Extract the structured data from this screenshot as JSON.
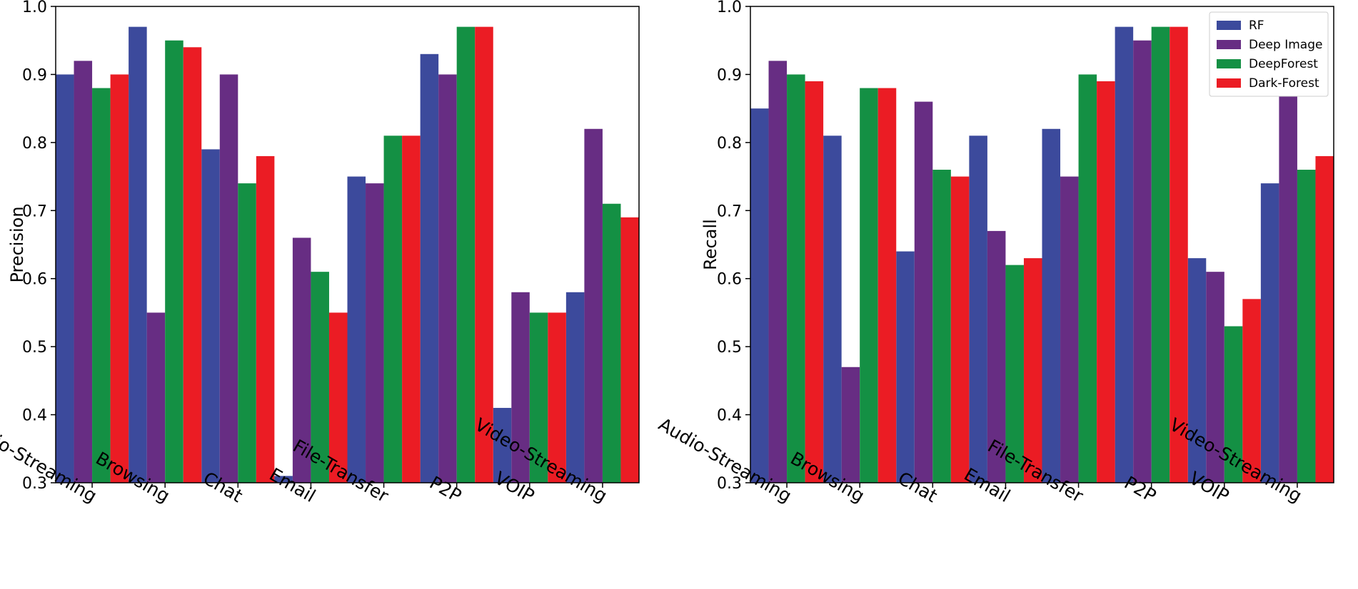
{
  "colors": {
    "RF": "#3c4a9c",
    "Deep Image": "#672d83",
    "DeepForest": "#149044",
    "Dark-Forest": "#eb1c24"
  },
  "chart_data": [
    {
      "type": "bar",
      "ylabel": "Precision",
      "ylim": [
        0.3,
        1.0
      ],
      "yticks": [
        "0.3",
        "0.4",
        "0.5",
        "0.6",
        "0.7",
        "0.8",
        "0.9",
        "1.0"
      ],
      "categories": [
        "Audio-Streaming",
        "Browsing",
        "Chat",
        "Email",
        "File-Transfer",
        "P2P",
        "VOIP",
        "Video-Streaming"
      ],
      "series": [
        {
          "name": "RF",
          "values": [
            0.9,
            0.97,
            0.79,
            0.31,
            0.75,
            0.93,
            0.41,
            0.58
          ]
        },
        {
          "name": "Deep Image",
          "values": [
            0.92,
            0.55,
            0.9,
            0.66,
            0.74,
            0.9,
            0.58,
            0.82
          ]
        },
        {
          "name": "DeepForest",
          "values": [
            0.88,
            0.95,
            0.74,
            0.61,
            0.81,
            0.97,
            0.55,
            0.71
          ]
        },
        {
          "name": "Dark-Forest",
          "values": [
            0.9,
            0.94,
            0.78,
            0.55,
            0.81,
            0.97,
            0.55,
            0.69
          ]
        }
      ],
      "legend": false
    },
    {
      "type": "bar",
      "ylabel": "Recall",
      "ylim": [
        0.3,
        1.0
      ],
      "yticks": [
        "0.3",
        "0.4",
        "0.5",
        "0.6",
        "0.7",
        "0.8",
        "0.9",
        "1.0"
      ],
      "categories": [
        "Audio-Streaming",
        "Browsing",
        "Chat",
        "Email",
        "File-Transfer",
        "P2P",
        "VOIP",
        "Video-Streaming"
      ],
      "series": [
        {
          "name": "RF",
          "values": [
            0.85,
            0.81,
            0.64,
            0.81,
            0.82,
            0.97,
            0.63,
            0.74
          ]
        },
        {
          "name": "Deep Image",
          "values": [
            0.92,
            0.47,
            0.86,
            0.67,
            0.75,
            0.95,
            0.61,
            0.91
          ]
        },
        {
          "name": "DeepForest",
          "values": [
            0.9,
            0.88,
            0.76,
            0.62,
            0.9,
            0.97,
            0.53,
            0.76
          ]
        },
        {
          "name": "Dark-Forest",
          "values": [
            0.89,
            0.88,
            0.75,
            0.63,
            0.89,
            0.97,
            0.57,
            0.78
          ]
        }
      ],
      "legend": true,
      "legend_position": "top-right"
    }
  ]
}
